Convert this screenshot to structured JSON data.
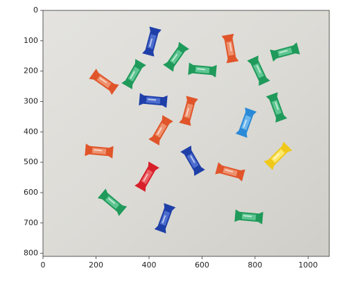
{
  "axes": {
    "xlim": [
      0,
      1080
    ],
    "ylim": [
      810,
      0
    ],
    "xticks": [
      0,
      200,
      400,
      600,
      800,
      1000
    ],
    "yticks": [
      0,
      100,
      200,
      300,
      400,
      500,
      600,
      700,
      800
    ]
  }
}
